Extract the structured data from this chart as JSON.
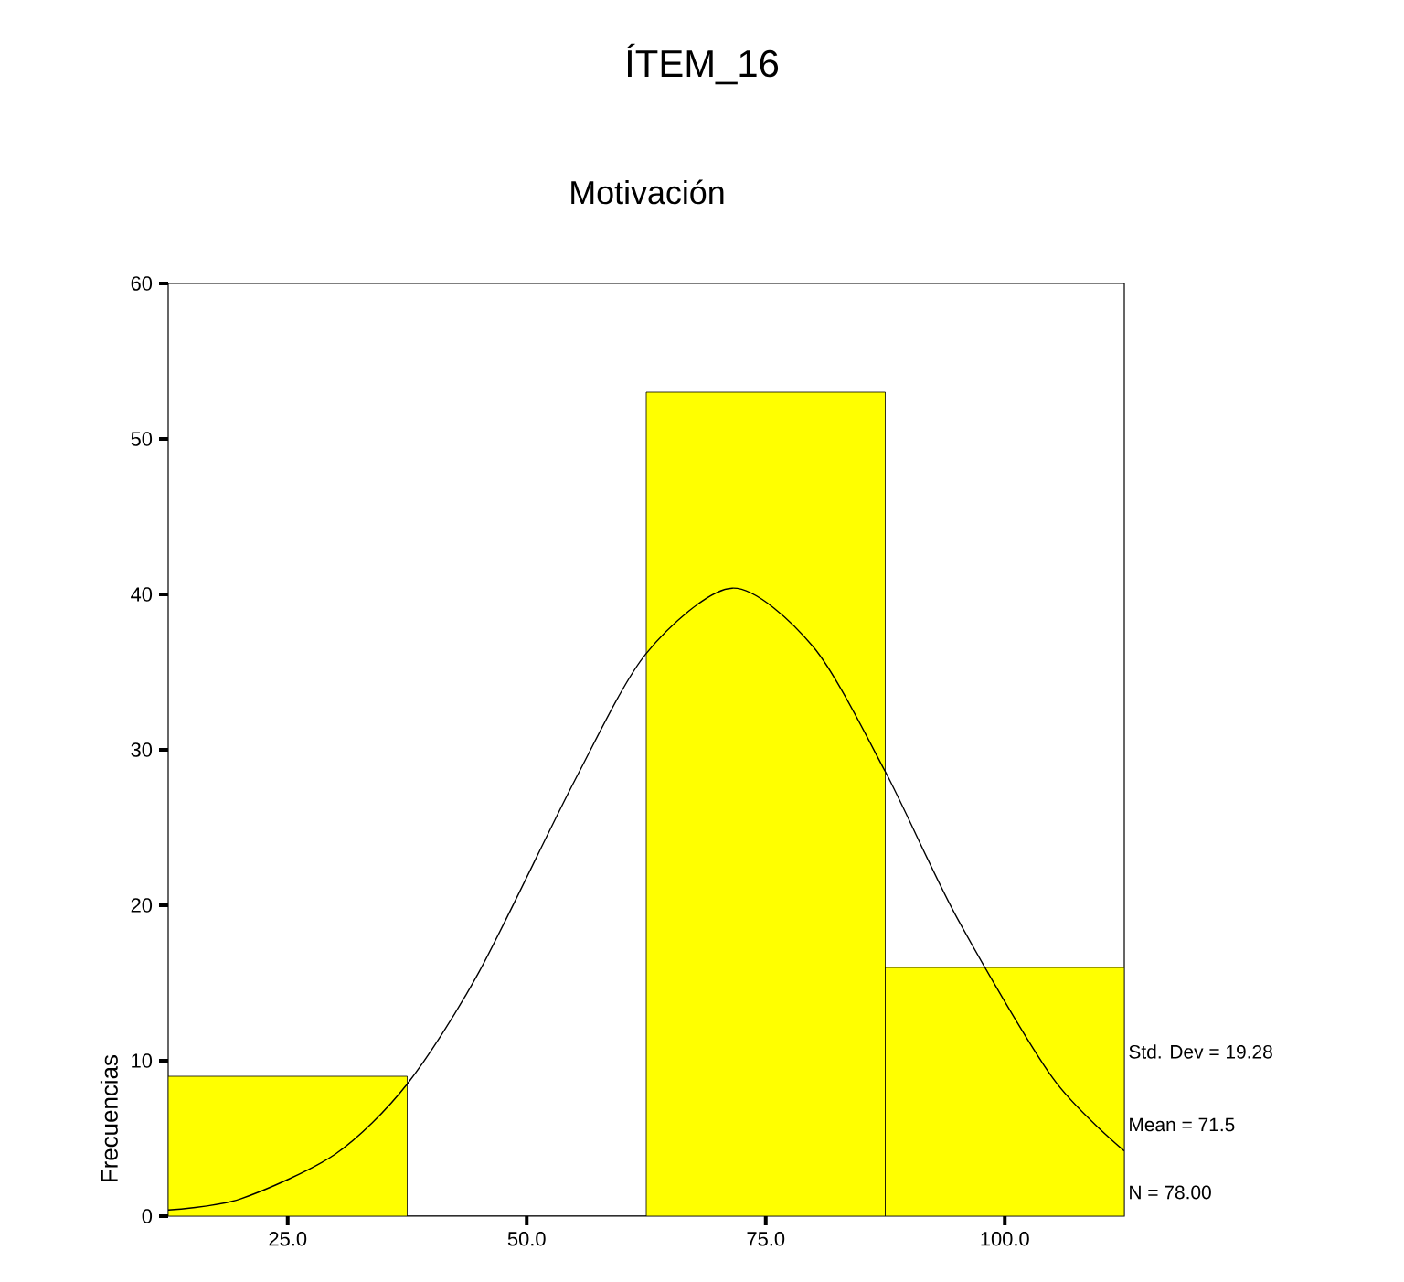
{
  "chart_data": {
    "type": "histogram",
    "title": "ÍTEM_16",
    "subtitle": "Motivación",
    "ylabel": "Frecuencias",
    "bins": [
      12.5,
      37.5,
      62.5,
      87.5,
      112.5
    ],
    "values": [
      9,
      0,
      53,
      16
    ],
    "color": "#ffff00",
    "series": [
      {
        "type": "line",
        "color": "#000000",
        "x": [
          12.5,
          20,
          30,
          37.5,
          45,
          55,
          62.5,
          71.5,
          80,
          87.5,
          95,
          105,
          112.5
        ],
        "values": [
          0.4,
          1.1,
          4.0,
          8.5,
          15.7,
          28.0,
          36.2,
          40.4,
          36.6,
          28.6,
          19.2,
          8.9,
          4.2
        ]
      }
    ],
    "xlim": [
      12.5,
      112.5
    ],
    "ylim": [
      0,
      60
    ],
    "xticks": [
      {
        "value": 25,
        "label": "25.0"
      },
      {
        "value": 50,
        "label": "50.0"
      },
      {
        "value": 75,
        "label": "75.0"
      },
      {
        "value": 100,
        "label": "100.0"
      }
    ],
    "yticks": [
      0,
      10,
      20,
      30,
      40,
      50,
      60
    ],
    "grid": false,
    "annotations": [
      "Std. Dev = 19.28",
      "Mean = 71.5",
      "N = 78.00"
    ]
  }
}
